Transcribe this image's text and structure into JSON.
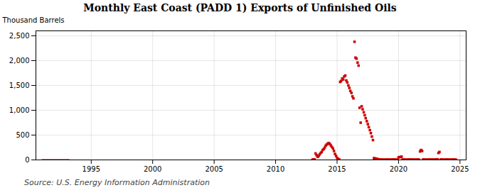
{
  "chart_data": {
    "type": "scatter",
    "title": "Monthly East Coast (PADD 1) Exports of Unfinished Oils",
    "ylabel": "Thousand Barrels",
    "source": "Source: U.S. Energy Information Administration",
    "xlim": [
      1990.5,
      2025.5
    ],
    "ylim": [
      0,
      2600
    ],
    "xticks": [
      1995,
      2000,
      2005,
      2010,
      2015,
      2020,
      2025
    ],
    "yticks": [
      0,
      500,
      {
        "value": 1000,
        "label": "1,000"
      },
      {
        "value": 1500,
        "label": "1,500"
      },
      {
        "value": 2000,
        "label": "2,000"
      },
      {
        "value": 2500,
        "label": "2,500"
      }
    ],
    "grid": true,
    "series": [
      {
        "type": "line",
        "color": "#8b0000",
        "line_style": "solid",
        "x": [
          1991.0,
          1993.2
        ],
        "values": [
          0,
          0
        ]
      },
      {
        "type": "scatter",
        "color": "#cc0000",
        "marker": "square",
        "x": [
          2013.0,
          2013.08,
          2013.17,
          2013.25,
          2013.33,
          2013.42,
          2013.5,
          2013.58,
          2013.67,
          2013.75,
          2013.83,
          2013.92,
          2014.0,
          2014.08,
          2014.17,
          2014.25,
          2014.33,
          2014.42,
          2014.5,
          2014.58,
          2014.67,
          2014.75,
          2014.83,
          2014.92,
          2015.0,
          2015.08,
          2015.17,
          2015.25,
          2015.33,
          2015.42,
          2015.5,
          2015.58,
          2015.67,
          2015.75,
          2015.83,
          2015.92,
          2016.0,
          2016.08,
          2016.17,
          2016.25,
          2016.33,
          2016.42,
          2016.5,
          2016.58,
          2016.67,
          2016.75,
          2016.83,
          2016.92,
          2017.0,
          2017.08,
          2017.17,
          2017.25,
          2017.33,
          2017.42,
          2017.5,
          2017.58,
          2017.67,
          2017.75,
          2017.83,
          2017.92,
          2018.0,
          2018.08,
          2018.17,
          2018.25,
          2018.33,
          2018.42,
          2018.5,
          2018.58,
          2018.67,
          2018.75,
          2018.83,
          2018.92,
          2019.0,
          2019.08,
          2019.17,
          2019.25,
          2019.33,
          2019.42,
          2019.5,
          2019.58,
          2019.67,
          2019.75,
          2019.83,
          2019.92,
          2020.0,
          2020.08,
          2020.17,
          2020.25,
          2020.33,
          2020.42,
          2020.5,
          2020.58,
          2020.67,
          2020.75,
          2020.83,
          2020.92,
          2021.0,
          2021.08,
          2021.17,
          2021.25,
          2021.33,
          2021.42,
          2021.5,
          2021.58,
          2021.67,
          2021.75,
          2021.83,
          2021.92,
          2022.0,
          2022.08,
          2022.17,
          2022.25,
          2022.33,
          2022.42,
          2022.5,
          2022.58,
          2022.67,
          2022.75,
          2022.83,
          2022.92,
          2023.0,
          2023.08,
          2023.17,
          2023.25,
          2023.33,
          2023.42,
          2023.5,
          2023.58,
          2023.67,
          2023.75,
          2023.83,
          2023.92,
          2024.0,
          2024.08,
          2024.17,
          2024.25,
          2024.33,
          2024.42,
          2024.5,
          2024.58,
          2024.67
        ],
        "values": [
          5,
          8,
          12,
          130,
          95,
          60,
          80,
          110,
          140,
          160,
          200,
          220,
          250,
          290,
          310,
          330,
          340,
          320,
          290,
          260,
          230,
          180,
          120,
          80,
          40,
          20,
          10,
          1570,
          1590,
          1640,
          1620,
          1680,
          1700,
          1600,
          1560,
          1500,
          1450,
          1390,
          1350,
          1280,
          1240,
          2380,
          2060,
          2040,
          1960,
          1900,
          1050,
          750,
          1080,
          1020,
          960,
          900,
          840,
          780,
          720,
          660,
          600,
          540,
          470,
          400,
          35,
          30,
          25,
          20,
          15,
          10,
          8,
          6,
          5,
          4,
          3,
          2,
          5,
          8,
          6,
          4,
          3,
          5,
          8,
          10,
          8,
          6,
          4,
          3,
          50,
          55,
          60,
          65,
          8,
          6,
          5,
          4,
          3,
          5,
          8,
          10,
          8,
          6,
          5,
          4,
          3,
          5,
          8,
          6,
          5,
          170,
          200,
          180,
          8,
          6,
          5,
          4,
          3,
          5,
          8,
          6,
          5,
          4,
          3,
          5,
          8,
          10,
          12,
          140,
          160,
          8,
          6,
          5,
          4,
          3,
          5,
          8,
          6,
          5,
          4,
          3,
          5,
          8,
          6,
          5,
          4
        ]
      }
    ]
  }
}
